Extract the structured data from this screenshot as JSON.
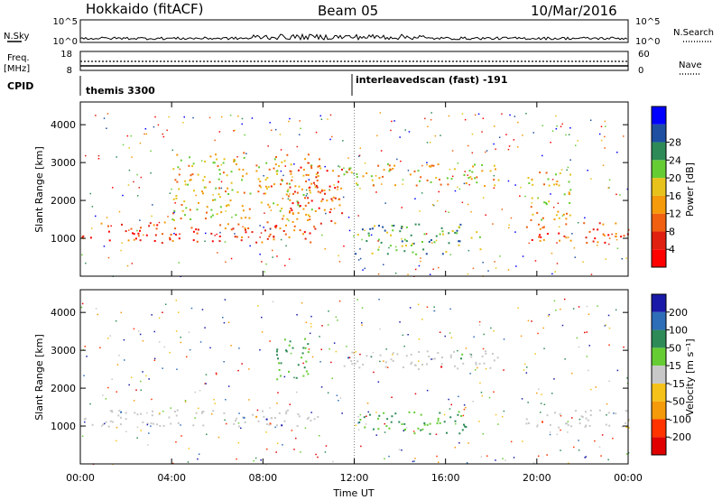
{
  "header": {
    "station": "Hokkaido (fitACF)",
    "beam": "Beam 05",
    "date": "10/Mar/2016"
  },
  "top_panels": {
    "nsky_label": "N.Sky",
    "nsky_ticks": [
      "10^5",
      "10^0"
    ],
    "nsearch_label": "N.Search",
    "nsearch_ticks": [
      "10^5",
      "10^0"
    ],
    "freq_label": "Freq.",
    "freq_unit": "[MHz]",
    "freq_ticks": [
      "18",
      "8"
    ],
    "nave_label": "Nave",
    "nave_ticks": [
      "60",
      "0"
    ],
    "cpid_label": "CPID",
    "cpid_segments": [
      {
        "text": "themis 3300",
        "start_hour": 0
      },
      {
        "text": "interleavedscan (fast) -191",
        "start_hour": 12
      }
    ]
  },
  "time_axis": {
    "label": "Time UT",
    "ticks": [
      "00:00",
      "04:00",
      "08:00",
      "12:00",
      "16:00",
      "20:00",
      "00:00"
    ],
    "tick_hours": [
      0,
      4,
      8,
      12,
      16,
      20,
      24
    ],
    "xlim": [
      0,
      24
    ]
  },
  "chart_data": [
    {
      "type": "heatmap",
      "title": "",
      "xlabel": "",
      "ylabel": "Slant Range [km]",
      "ylim": [
        0,
        4600
      ],
      "yticks": [
        1000,
        2000,
        3000,
        4000
      ],
      "colorbar": {
        "label": "Power [dB]",
        "ticks": [
          "4",
          "8",
          "12",
          "16",
          "20",
          "24",
          "28"
        ],
        "colors": [
          "#0000ff",
          "#1f4fa0",
          "#2e8b57",
          "#66cc33",
          "#e6c21a",
          "#f59a0a",
          "#f06010",
          "#e02010",
          "#ff0000"
        ]
      },
      "regions": [
        {
          "hour_start": 0,
          "hour_end": 10.3,
          "range_start": 900,
          "range_end": 1450,
          "level": "strong"
        },
        {
          "hour_start": 4,
          "hour_end": 10.5,
          "range_start": 1500,
          "range_end": 3300,
          "level": "medium"
        },
        {
          "hour_start": 9,
          "hour_end": 11.5,
          "range_start": 1400,
          "range_end": 2900,
          "level": "strong"
        },
        {
          "hour_start": 11.5,
          "hour_end": 18.5,
          "range_start": 2400,
          "range_end": 3000,
          "level": "medium"
        },
        {
          "hour_start": 12,
          "hour_end": 17.5,
          "range_start": 600,
          "range_end": 1400,
          "level": "weak"
        },
        {
          "hour_start": 19.5,
          "hour_end": 24,
          "range_start": 900,
          "range_end": 1450,
          "level": "strong"
        },
        {
          "hour_start": 19.5,
          "hour_end": 21.5,
          "range_start": 1500,
          "range_end": 2800,
          "level": "medium"
        }
      ]
    },
    {
      "type": "heatmap",
      "title": "",
      "xlabel": "Time UT",
      "ylabel": "Slant Range [km]",
      "ylim": [
        0,
        4600
      ],
      "yticks": [
        1000,
        2000,
        3000,
        4000
      ],
      "colorbar": {
        "label": "Velocity [m s⁻¹]",
        "ticks": [
          "200",
          "100",
          "50",
          "15",
          "-15",
          "-50",
          "-100",
          "-200"
        ],
        "colors": [
          "#1a1aa8",
          "#2e6db8",
          "#2e8b57",
          "#66cc33",
          "#c8c8c8",
          "#f5c21a",
          "#f59a0a",
          "#ff3300",
          "#e00000"
        ]
      },
      "regions": [
        {
          "hour_start": 0,
          "hour_end": 10.5,
          "range_start": 1000,
          "range_end": 1450,
          "level": "ground"
        },
        {
          "hour_start": 11.5,
          "hour_end": 18.5,
          "range_start": 2500,
          "range_end": 3000,
          "level": "ground"
        },
        {
          "hour_start": 19.5,
          "hour_end": 24,
          "range_start": 950,
          "range_end": 1450,
          "level": "ground"
        },
        {
          "hour_start": 8.5,
          "hour_end": 10,
          "range_start": 2200,
          "range_end": 3400,
          "level": "positive"
        },
        {
          "hour_start": 12,
          "hour_end": 17,
          "range_start": 800,
          "range_end": 1400,
          "level": "positive"
        }
      ]
    }
  ]
}
